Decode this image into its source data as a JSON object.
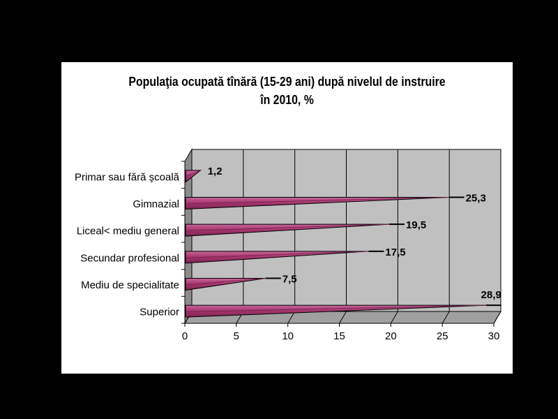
{
  "chart_data": {
    "type": "bar",
    "orientation": "horizontal",
    "title": "Populaţia ocupată tînără (15-29 ani) după nivelul de instruire",
    "subtitle": "în 2010, %",
    "categories": [
      "Primar sau fără şcoală",
      "Gimnazial",
      "Liceal< mediu general",
      "Secundar profesional",
      "Mediu de specialitate",
      "Superior"
    ],
    "values": [
      1.2,
      25.3,
      19.5,
      17.5,
      7.5,
      28.9
    ],
    "data_labels": [
      "1,2",
      "25,3",
      "19,5",
      "17,5",
      "7,5",
      "28,9"
    ],
    "xlim": [
      0,
      30
    ],
    "xticks": [
      "0",
      "5",
      "10",
      "15",
      "20",
      "25",
      "30"
    ],
    "grid": true,
    "legend": "none",
    "colors": {
      "bar_dark": "#7a2250",
      "bar_mid": "#a8386f",
      "bar_light": "#c5669a",
      "plot_bg": "#c0c0c0",
      "wall_side": "#8c8c8c",
      "floor": "#a0a0a0"
    }
  }
}
